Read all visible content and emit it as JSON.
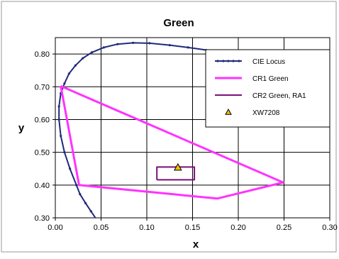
{
  "chart_data": {
    "type": "scatter",
    "title": "Green",
    "xlabel": "x",
    "ylabel": "y",
    "xlim": [
      0.0,
      0.3
    ],
    "ylim": [
      0.3,
      0.85
    ],
    "x_ticks": [
      "0.00",
      "0.05",
      "0.10",
      "0.15",
      "0.20",
      "0.25",
      "0.30"
    ],
    "y_ticks": [
      "0.30",
      "0.40",
      "0.50",
      "0.60",
      "0.70",
      "0.80"
    ],
    "grid": true,
    "legend_position": "top-right",
    "series": [
      {
        "name": "CIE Locus",
        "kind": "line-markers",
        "color": "#1f2a7a",
        "points": [
          [
            0.045,
            0.295
          ],
          [
            0.039,
            0.32
          ],
          [
            0.033,
            0.345
          ],
          [
            0.027,
            0.372
          ],
          [
            0.023,
            0.4
          ],
          [
            0.016,
            0.45
          ],
          [
            0.01,
            0.5
          ],
          [
            0.006,
            0.55
          ],
          [
            0.004,
            0.6
          ],
          [
            0.004,
            0.64
          ],
          [
            0.006,
            0.68
          ],
          [
            0.01,
            0.71
          ],
          [
            0.015,
            0.74
          ],
          [
            0.022,
            0.765
          ],
          [
            0.03,
            0.787
          ],
          [
            0.04,
            0.805
          ],
          [
            0.053,
            0.82
          ],
          [
            0.068,
            0.83
          ],
          [
            0.085,
            0.834
          ],
          [
            0.103,
            0.833
          ],
          [
            0.125,
            0.827
          ],
          [
            0.145,
            0.82
          ],
          [
            0.165,
            0.812
          ],
          [
            0.18,
            0.806
          ],
          [
            0.17,
            0.81
          ]
        ]
      },
      {
        "name": "CR1 Green",
        "kind": "polygon",
        "color": "#ff33ff",
        "points": [
          [
            0.006,
            0.702
          ],
          [
            0.249,
            0.408
          ],
          [
            0.177,
            0.359
          ],
          [
            0.026,
            0.4
          ],
          [
            0.006,
            0.702
          ]
        ]
      },
      {
        "name": "CR2 Green, RA1",
        "kind": "polygon",
        "color": "#7a0f7a",
        "points": [
          [
            0.111,
            0.416
          ],
          [
            0.152,
            0.416
          ],
          [
            0.152,
            0.455
          ],
          [
            0.111,
            0.455
          ],
          [
            0.111,
            0.416
          ]
        ]
      },
      {
        "name": "XW7208",
        "kind": "marker",
        "color": "#f2c200",
        "points": [
          [
            0.134,
            0.454
          ]
        ]
      }
    ]
  }
}
